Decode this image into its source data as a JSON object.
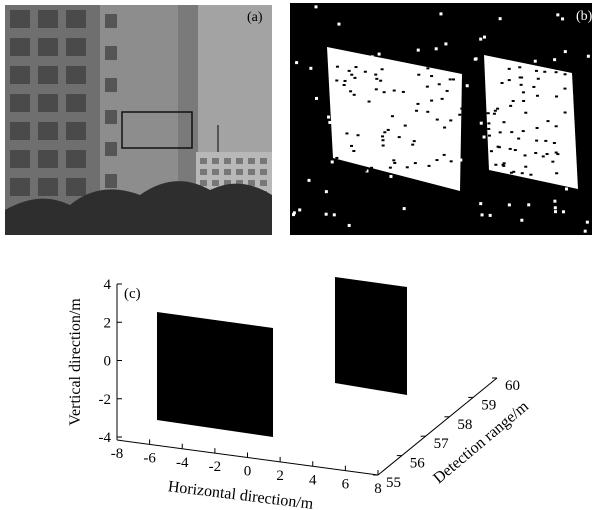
{
  "panels": {
    "a": {
      "label": "(a)"
    },
    "b": {
      "label": "(b)"
    },
    "c": {
      "label": "(c)",
      "vertical_axis": {
        "label": "Vertical direction/m",
        "ticks": [
          4,
          2,
          0,
          -2,
          -4
        ]
      },
      "horizontal_axis": {
        "label": "Horizontal direction/m",
        "ticks": [
          -8,
          -6,
          -4,
          -2,
          0,
          2,
          4,
          6,
          8
        ]
      },
      "range_axis": {
        "label": "Detection range/m",
        "ticks": [
          55,
          56,
          57,
          58,
          59,
          60
        ]
      }
    }
  }
}
